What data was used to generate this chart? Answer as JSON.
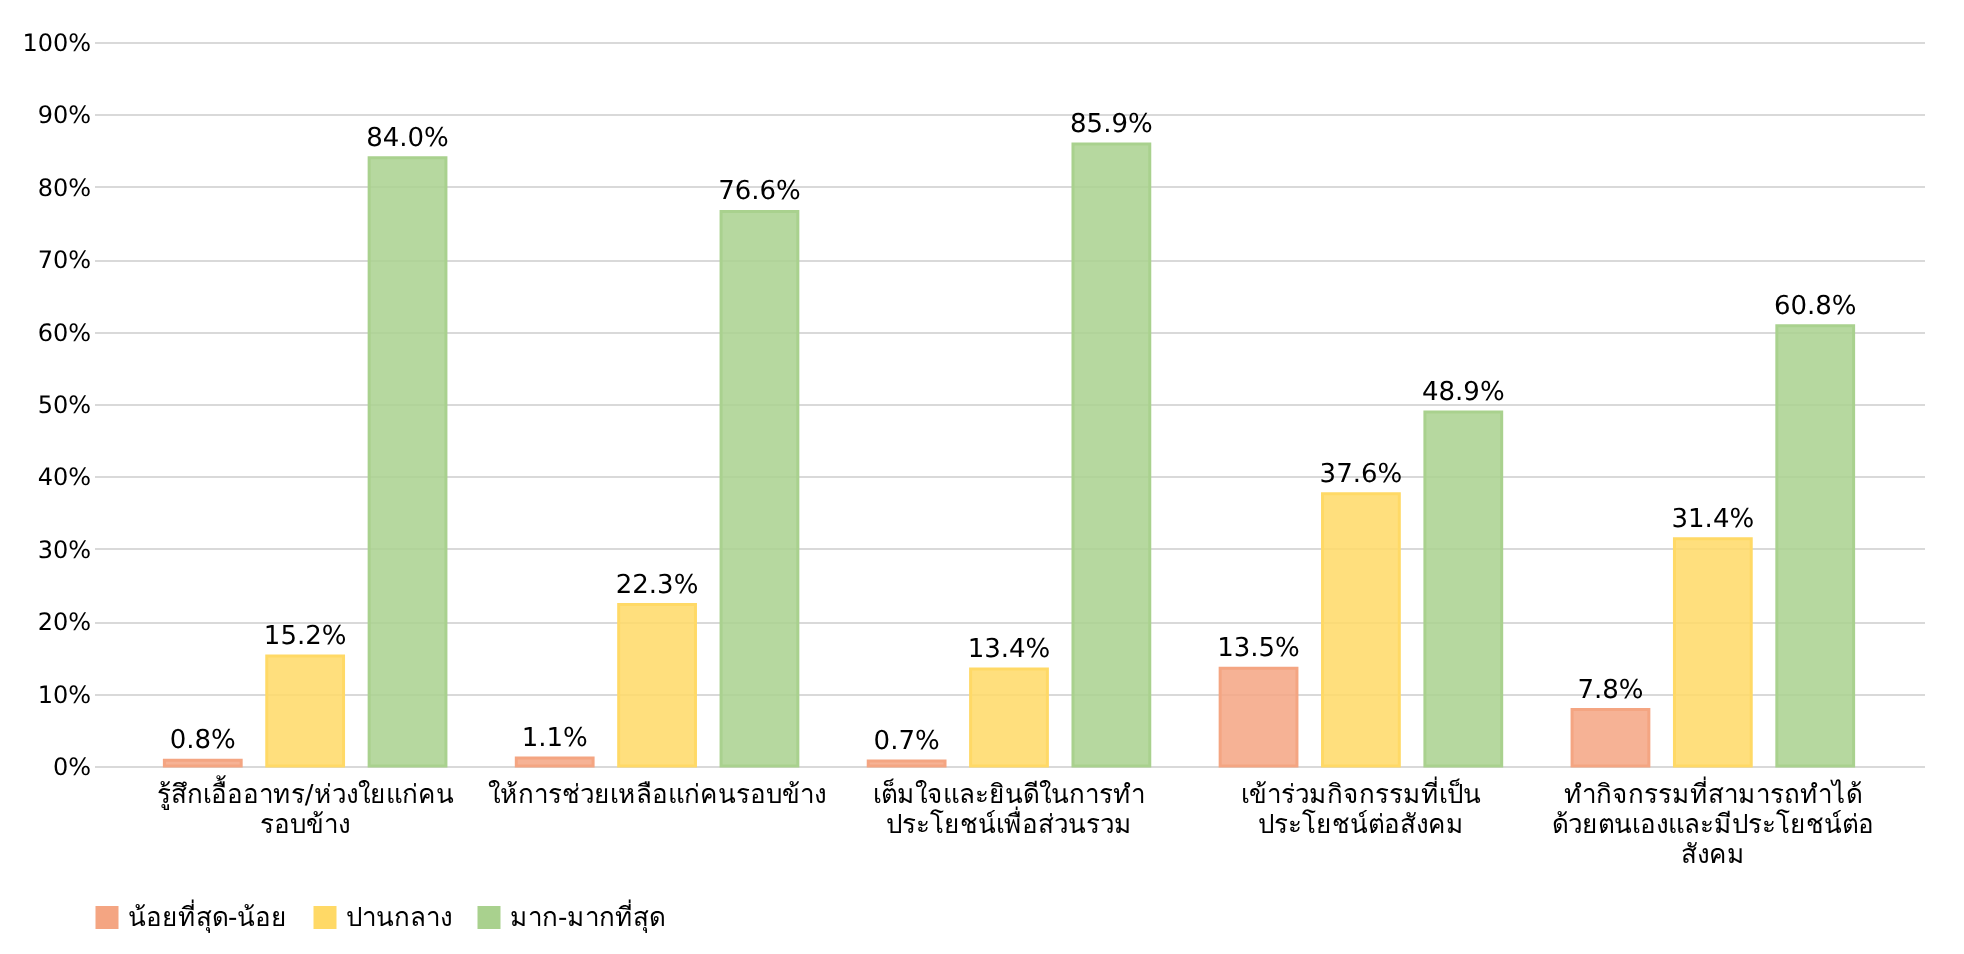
{
  "chart_data": {
    "type": "bar",
    "categories": [
      "รู้สึกเอื้ออาทร/ห่วงใยแก่คน\nรอบข้าง",
      "ให้การช่วยเหลือแก่คนรอบข้าง",
      "เต็มใจและยินดีในการทำ\nประโยชน์เพื่อส่วนรวม",
      "เข้าร่วมกิจกรรมที่เป็น\nประโยชน์ต่อสังคม",
      "ทำกิจกรรมที่สามารถทำได้\nด้วยตนเองและมีประโยชน์ต่อ\nสังคม"
    ],
    "series": [
      {
        "name": "น้อยที่สุด-น้อย",
        "color": "#f4a582",
        "values": [
          0.8,
          1.1,
          0.7,
          13.5,
          7.8
        ],
        "value_labels": [
          "0.8%",
          "1.1%",
          "0.7%",
          "13.5%",
          "7.8%"
        ]
      },
      {
        "name": "ปานกลาง",
        "color": "#ffd966",
        "values": [
          15.2,
          22.3,
          13.4,
          37.6,
          31.4
        ],
        "value_labels": [
          "15.2%",
          "22.3%",
          "13.4%",
          "37.6%",
          "31.4%"
        ]
      },
      {
        "name": "มาก-มากที่สุด",
        "color": "#a9d18e",
        "values": [
          84.0,
          76.6,
          85.9,
          48.9,
          60.8
        ],
        "value_labels": [
          "84.0%",
          "76.6%",
          "85.9%",
          "48.9%",
          "60.8%"
        ]
      }
    ],
    "ylim": [
      0,
      100
    ],
    "yticks": [
      {
        "value": 0,
        "label": "0%"
      },
      {
        "value": 10,
        "label": "10%"
      },
      {
        "value": 20,
        "label": "20%"
      },
      {
        "value": 30,
        "label": "30%"
      },
      {
        "value": 40,
        "label": "40%"
      },
      {
        "value": 50,
        "label": "50%"
      },
      {
        "value": 60,
        "label": "60%"
      },
      {
        "value": 70,
        "label": "70%"
      },
      {
        "value": 80,
        "label": "80%"
      },
      {
        "value": 90,
        "label": "90%"
      },
      {
        "value": 100,
        "label": "100%"
      }
    ],
    "grid": "y",
    "legend": "bottom"
  }
}
